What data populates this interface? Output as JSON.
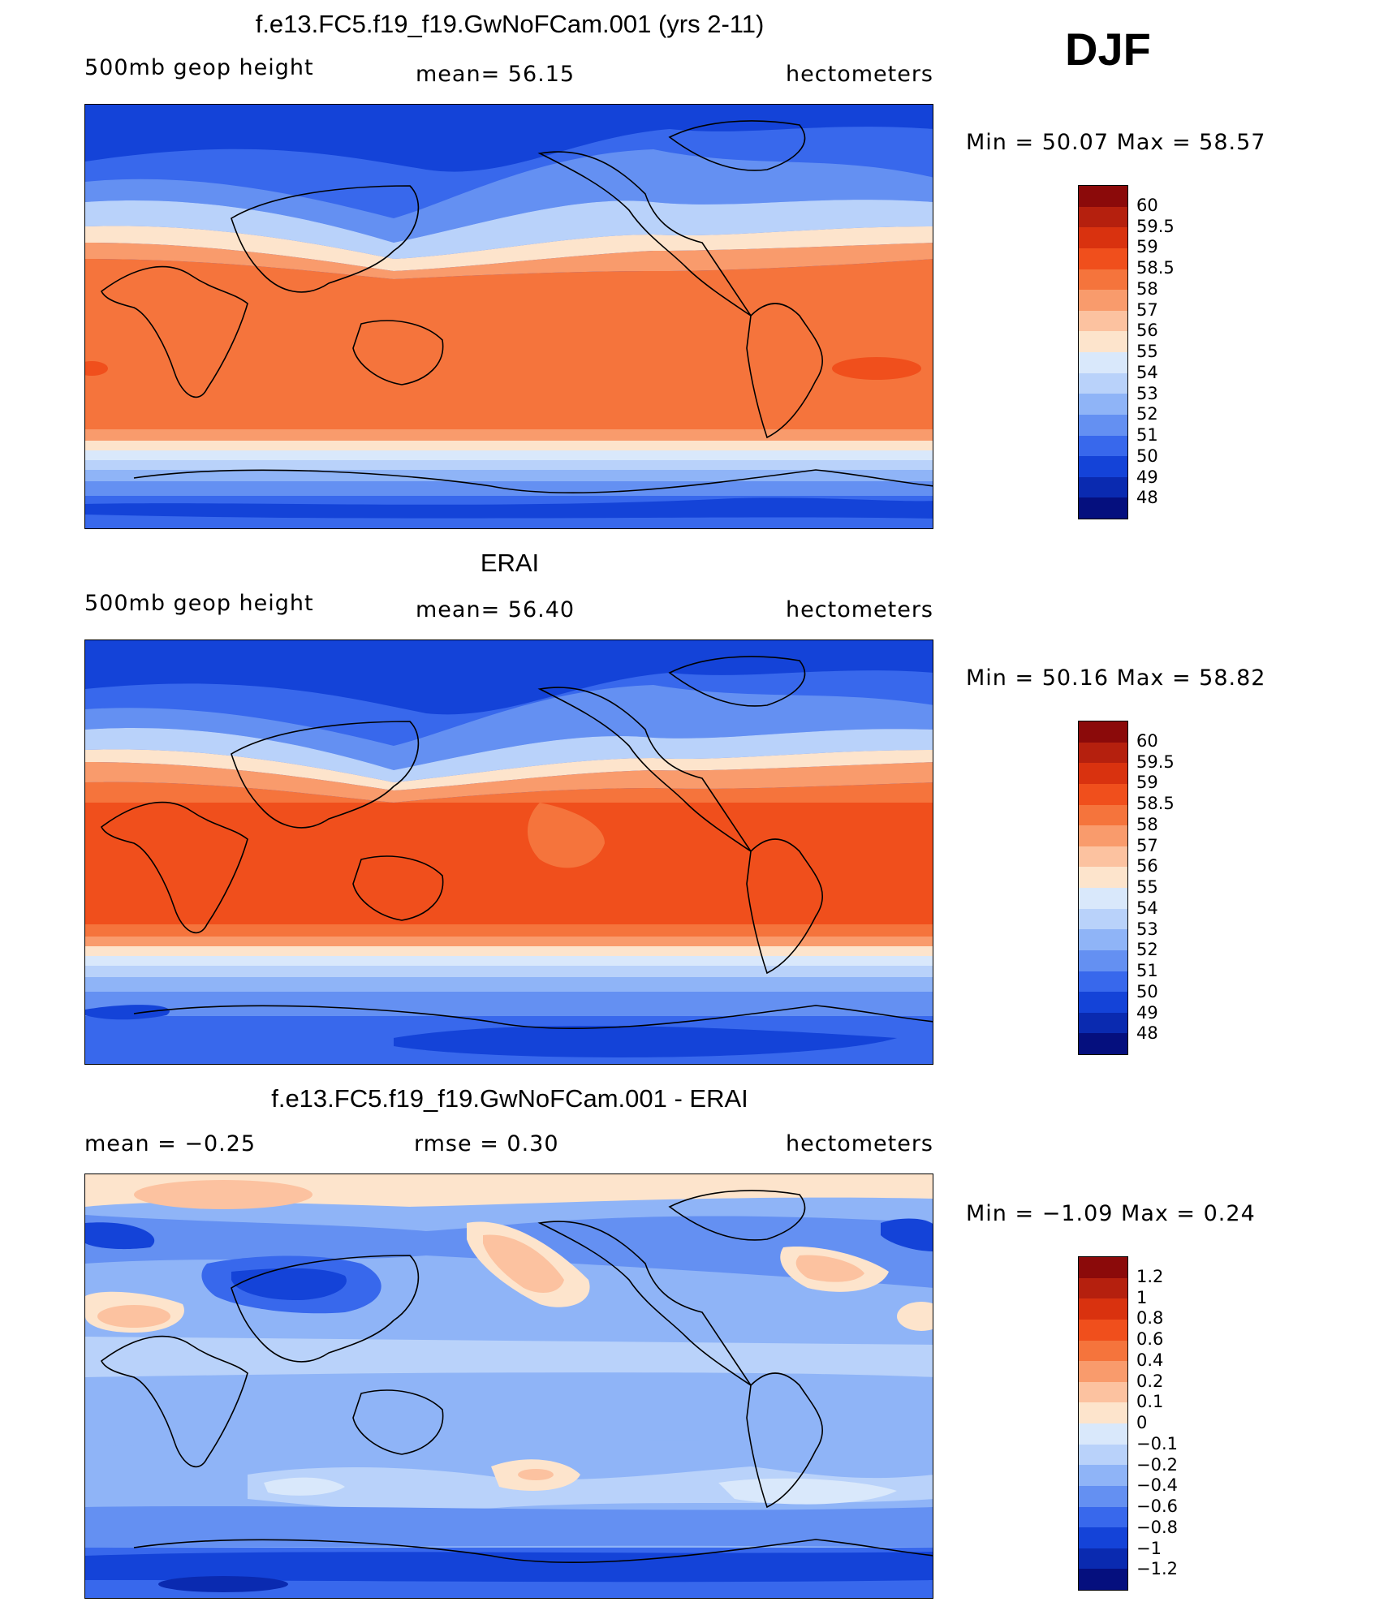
{
  "season": "DJF",
  "panels": [
    {
      "title": "f.e13.FC5.f19_f19.GwNoFCam.001 (yrs 2-11)",
      "left_label": "500mb geop height",
      "center_label": "mean=  56.15",
      "units": "hectometers",
      "minmax": "Min =   50.07 Max =   58.57",
      "legend_labels": [
        "60",
        "59.5",
        "59",
        "58.5",
        "58",
        "57",
        "56",
        "55",
        "54",
        "53",
        "52",
        "51",
        "50",
        "49",
        "48"
      ],
      "legend_colors": [
        "#8b0a0a",
        "#b5200e",
        "#d9320f",
        "#f04f1c",
        "#f5743c",
        "#f99b6c",
        "#fcc2a0",
        "#fde4cc",
        "#d9e8fb",
        "#b9d2fa",
        "#8fb4f7",
        "#6490f2",
        "#3868ec",
        "#1443d8",
        "#0a2ab0",
        "#050f7e"
      ],
      "stats": {
        "mean": 56.15,
        "min": 50.07,
        "max": 58.57
      }
    },
    {
      "title": "ERAI",
      "left_label": "500mb geop height",
      "center_label": "mean=  56.40",
      "units": "hectometers",
      "minmax": "Min =   50.16 Max =   58.82",
      "legend_labels": [
        "60",
        "59.5",
        "59",
        "58.5",
        "58",
        "57",
        "56",
        "55",
        "54",
        "53",
        "52",
        "51",
        "50",
        "49",
        "48"
      ],
      "legend_colors": [
        "#8b0a0a",
        "#b5200e",
        "#d9320f",
        "#f04f1c",
        "#f5743c",
        "#f99b6c",
        "#fcc2a0",
        "#fde4cc",
        "#d9e8fb",
        "#b9d2fa",
        "#8fb4f7",
        "#6490f2",
        "#3868ec",
        "#1443d8",
        "#0a2ab0",
        "#050f7e"
      ],
      "stats": {
        "mean": 56.4,
        "min": 50.16,
        "max": 58.82
      }
    },
    {
      "title": "f.e13.FC5.f19_f19.GwNoFCam.001 - ERAI",
      "left_label": "mean =   −0.25",
      "center_label": "rmse =    0.30",
      "units": "hectometers",
      "minmax": "Min =   −1.09 Max =    0.24",
      "legend_labels": [
        "1.2",
        "1",
        "0.8",
        "0.6",
        "0.4",
        "0.2",
        "0.1",
        "0",
        "−0.1",
        "−0.2",
        "−0.4",
        "−0.6",
        "−0.8",
        "−1",
        "−1.2"
      ],
      "legend_colors": [
        "#8b0a0a",
        "#b5200e",
        "#d9320f",
        "#f04f1c",
        "#f5743c",
        "#f99b6c",
        "#fcc2a0",
        "#fde4cc",
        "#d9e8fb",
        "#b9d2fa",
        "#8fb4f7",
        "#6490f2",
        "#3868ec",
        "#1443d8",
        "#0a2ab0",
        "#050f7e"
      ],
      "stats": {
        "mean": -0.25,
        "rmse": 0.3,
        "min": -1.09,
        "max": 0.24
      }
    }
  ]
}
